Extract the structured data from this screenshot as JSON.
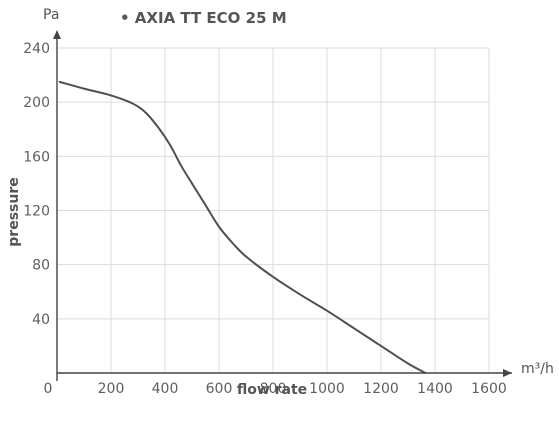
{
  "chart_data": {
    "type": "line",
    "title": "• AXIA TT ECO 25 M",
    "xlabel": "flow rate",
    "ylabel": "pressure",
    "x_unit": "m³/h",
    "y_unit": "Pa",
    "xlim": [
      0,
      1600
    ],
    "ylim": [
      0,
      240
    ],
    "x_ticks": [
      0,
      200,
      400,
      600,
      800,
      1000,
      1200,
      1400,
      1600
    ],
    "y_ticks": [
      40,
      80,
      120,
      160,
      200,
      240
    ],
    "grid": true,
    "series": [
      {
        "color": "#505050",
        "points": [
          [
            10,
            215
          ],
          [
            100,
            210
          ],
          [
            200,
            205
          ],
          [
            280,
            199
          ],
          [
            330,
            192
          ],
          [
            380,
            180
          ],
          [
            420,
            168
          ],
          [
            460,
            153
          ],
          [
            500,
            140
          ],
          [
            550,
            124
          ],
          [
            600,
            108
          ],
          [
            650,
            96
          ],
          [
            700,
            86
          ],
          [
            800,
            71
          ],
          [
            900,
            58
          ],
          [
            1000,
            46
          ],
          [
            1100,
            33
          ],
          [
            1200,
            20
          ],
          [
            1300,
            7
          ],
          [
            1365,
            0
          ]
        ]
      }
    ]
  }
}
